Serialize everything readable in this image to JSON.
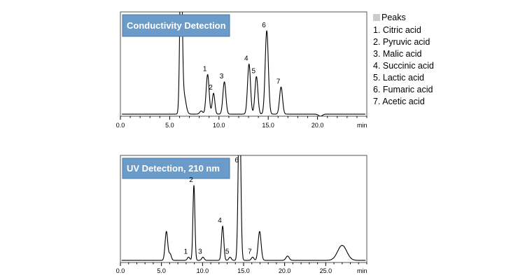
{
  "legend": {
    "title": "Peaks",
    "items": [
      "1. Citric acid",
      "2. Pyruvic acid",
      "3. Malic acid",
      "4. Succinic acid",
      "5. Lactic acid",
      "6. Fumaric acid",
      "7. Acetic acid"
    ]
  },
  "colors": {
    "banner": "#6a9bc9",
    "banner_border": "#4a7aa8",
    "legend_square": "#cccccc",
    "trace": "#000000",
    "frame": "#555555"
  },
  "chart_data": [
    {
      "type": "line",
      "title": "Conductivity Detection",
      "xlabel": "min",
      "ylabel": "",
      "xlim": [
        0,
        25
      ],
      "ylim": [
        0,
        1
      ],
      "x_ticks": [
        "0.0",
        "5.0",
        "10.0",
        "15.0",
        "20.0"
      ],
      "x_tick_values": [
        0,
        5,
        10,
        15,
        20
      ],
      "grid": false,
      "baseline": 0.02,
      "peaks": [
        {
          "label": "",
          "rt": 6.15,
          "height": 1.6,
          "width": 0.12
        },
        {
          "label": "",
          "rt": 6.45,
          "height": 0.18,
          "width": 0.2
        },
        {
          "label": "",
          "rt": 8.2,
          "height": 0.03,
          "width": 0.15
        },
        {
          "label": "1",
          "rt": 8.85,
          "height": 0.38,
          "width": 0.15
        },
        {
          "label": "2",
          "rt": 9.45,
          "height": 0.2,
          "width": 0.13
        },
        {
          "label": "3",
          "rt": 10.55,
          "height": 0.31,
          "width": 0.15
        },
        {
          "label": "4",
          "rt": 13.05,
          "height": 0.48,
          "width": 0.15
        },
        {
          "label": "5",
          "rt": 13.8,
          "height": 0.36,
          "width": 0.15
        },
        {
          "label": "6",
          "rt": 14.85,
          "height": 0.8,
          "width": 0.16
        },
        {
          "label": "7",
          "rt": 16.3,
          "height": 0.26,
          "width": 0.15
        },
        {
          "label": "",
          "rt": 20.3,
          "height": -0.02,
          "width": 0.2
        }
      ]
    },
    {
      "type": "line",
      "title": "UV Detection, 210 nm",
      "xlabel": "min",
      "ylabel": "",
      "xlim": [
        0,
        30
      ],
      "ylim": [
        0,
        1
      ],
      "x_ticks": [
        "0.0",
        "5.0",
        "10.0",
        "15.0",
        "20.0",
        "25.0"
      ],
      "x_tick_values": [
        0,
        5,
        10,
        15,
        20,
        25
      ],
      "grid": false,
      "baseline": 0.02,
      "peaks": [
        {
          "label": "",
          "rt": 5.6,
          "height": 0.27,
          "width": 0.16
        },
        {
          "label": "",
          "rt": 6.05,
          "height": 0.06,
          "width": 0.15
        },
        {
          "label": "1",
          "rt": 8.3,
          "height": 0.03,
          "width": 0.15
        },
        {
          "label": "2",
          "rt": 8.95,
          "height": 0.7,
          "width": 0.12
        },
        {
          "label": "3",
          "rt": 10.05,
          "height": 0.03,
          "width": 0.15
        },
        {
          "label": "4",
          "rt": 12.45,
          "height": 0.32,
          "width": 0.14
        },
        {
          "label": "5",
          "rt": 13.35,
          "height": 0.03,
          "width": 0.15
        },
        {
          "label": "6",
          "rt": 14.5,
          "height": 1.6,
          "width": 0.15
        },
        {
          "label": "7",
          "rt": 16.1,
          "height": 0.03,
          "width": 0.15
        },
        {
          "label": "",
          "rt": 16.95,
          "height": 0.27,
          "width": 0.18
        },
        {
          "label": "",
          "rt": 20.35,
          "height": 0.04,
          "width": 0.2
        },
        {
          "label": "",
          "rt": 27.0,
          "height": 0.14,
          "width": 0.55
        }
      ]
    }
  ]
}
